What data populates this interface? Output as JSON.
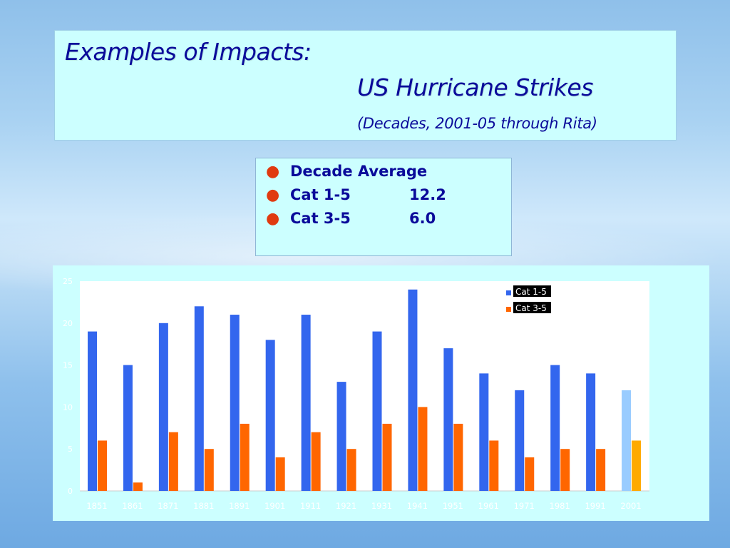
{
  "title": {
    "line1": "Examples of Impacts:",
    "line2": "US Hurricane Strikes",
    "line3": "(Decades, 2001-05 through Rita)"
  },
  "bullets": {
    "items": [
      {
        "label": "Decade Average",
        "value": ""
      },
      {
        "label": "Cat 1-5",
        "value": "12.2"
      },
      {
        "label": "Cat 3-5",
        "value": "6.0"
      }
    ]
  },
  "colors": {
    "bullet": "#e03a10",
    "title_text": "#0a0a9a",
    "cat15": "#3366ee",
    "cat35": "#ff6600",
    "cat15_partial": "#99ccff",
    "cat35_partial": "#ffaa00"
  },
  "chart_data": {
    "type": "bar",
    "categories": [
      "1851",
      "1861",
      "1871",
      "1881",
      "1891",
      "1901",
      "1911",
      "1921",
      "1931",
      "1941",
      "1951",
      "1961",
      "1971",
      "1981",
      "1991",
      "2001"
    ],
    "series": [
      {
        "name": "Cat 1-5",
        "values": [
          19,
          15,
          20,
          22,
          21,
          18,
          21,
          13,
          19,
          24,
          17,
          14,
          12,
          15,
          14,
          12
        ]
      },
      {
        "name": "Cat 3-5",
        "values": [
          6,
          1,
          7,
          5,
          8,
          4,
          7,
          5,
          8,
          10,
          8,
          6,
          4,
          5,
          5,
          6
        ]
      }
    ],
    "ylim": [
      0,
      25
    ],
    "yticks": [
      0,
      5,
      10,
      15,
      20,
      25
    ],
    "legend_position": "top-right",
    "xlabel": "",
    "ylabel": "",
    "grid": false
  }
}
